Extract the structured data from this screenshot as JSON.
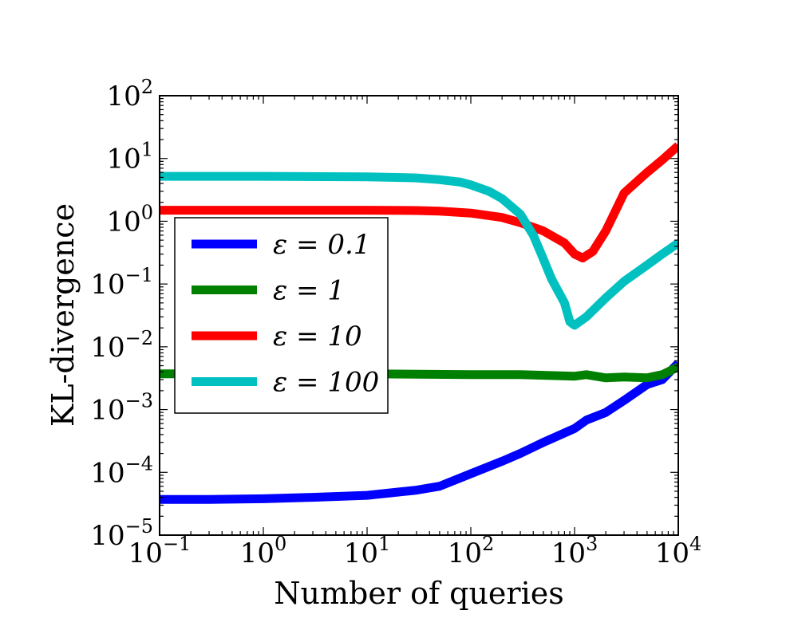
{
  "chart_data": {
    "type": "line",
    "title": "",
    "xlabel": "Number of queries",
    "ylabel": "KL-divergence",
    "xscale": "log",
    "yscale": "log",
    "xlim": [
      0.1,
      10000
    ],
    "ylim": [
      1e-05,
      100
    ],
    "grid": false,
    "legend_position": "center-left",
    "x_ticks": [
      {
        "value": 0.1,
        "base": "10",
        "exp": "−1"
      },
      {
        "value": 1,
        "base": "10",
        "exp": "0"
      },
      {
        "value": 10,
        "base": "10",
        "exp": "1"
      },
      {
        "value": 100,
        "base": "10",
        "exp": "2"
      },
      {
        "value": 1000,
        "base": "10",
        "exp": "3"
      },
      {
        "value": 10000,
        "base": "10",
        "exp": "4"
      }
    ],
    "y_ticks": [
      {
        "value": 1e-05,
        "base": "10",
        "exp": "−5"
      },
      {
        "value": 0.0001,
        "base": "10",
        "exp": "−4"
      },
      {
        "value": 0.001,
        "base": "10",
        "exp": "−3"
      },
      {
        "value": 0.01,
        "base": "10",
        "exp": "−2"
      },
      {
        "value": 0.1,
        "base": "10",
        "exp": "−1"
      },
      {
        "value": 1,
        "base": "10",
        "exp": "0"
      },
      {
        "value": 10,
        "base": "10",
        "exp": "1"
      },
      {
        "value": 100,
        "base": "10",
        "exp": "2"
      }
    ],
    "series": [
      {
        "name": "ε = 0.1",
        "color": "#0000ff",
        "x": [
          0.1,
          0.3,
          1,
          3,
          10,
          30,
          50,
          100,
          200,
          300,
          500,
          1000,
          1300,
          2000,
          3000,
          5000,
          7000,
          10000
        ],
        "y": [
          3.7e-05,
          3.7e-05,
          3.8e-05,
          4e-05,
          4.3e-05,
          5.2e-05,
          6e-05,
          9.5e-05,
          0.00015,
          0.0002,
          0.0003,
          0.0005,
          0.00068,
          0.0009,
          0.0014,
          0.0025,
          0.003,
          0.0055
        ]
      },
      {
        "name": "ε = 1",
        "color": "#008000",
        "x": [
          0.1,
          1,
          10,
          100,
          300,
          1000,
          1300,
          2000,
          3000,
          5000,
          7000,
          10000
        ],
        "y": [
          0.0037,
          0.0037,
          0.0037,
          0.0036,
          0.0036,
          0.0034,
          0.0036,
          0.0032,
          0.0033,
          0.0032,
          0.0036,
          0.0048
        ]
      },
      {
        "name": "ε = 10",
        "color": "#ff0000",
        "x": [
          0.1,
          1,
          10,
          30,
          50,
          100,
          200,
          300,
          500,
          800,
          1000,
          1200,
          1500,
          2000,
          2500,
          3000,
          5000,
          7000,
          10000
        ],
        "y": [
          1.5,
          1.5,
          1.5,
          1.48,
          1.45,
          1.35,
          1.15,
          0.95,
          0.7,
          0.45,
          0.3,
          0.26,
          0.33,
          0.7,
          1.5,
          2.8,
          6,
          9.5,
          16
        ]
      },
      {
        "name": "ε = 100",
        "color": "#00c0c0",
        "x": [
          0.1,
          1,
          10,
          30,
          50,
          80,
          100,
          150,
          200,
          300,
          400,
          500,
          600,
          800,
          900,
          1000,
          1300,
          2000,
          3000,
          5000,
          7000,
          10000
        ],
        "y": [
          5.2,
          5.2,
          5.1,
          4.9,
          4.6,
          4.2,
          3.8,
          3.0,
          2.3,
          1.3,
          0.6,
          0.25,
          0.12,
          0.05,
          0.025,
          0.022,
          0.03,
          0.06,
          0.11,
          0.2,
          0.3,
          0.45
        ]
      }
    ]
  }
}
